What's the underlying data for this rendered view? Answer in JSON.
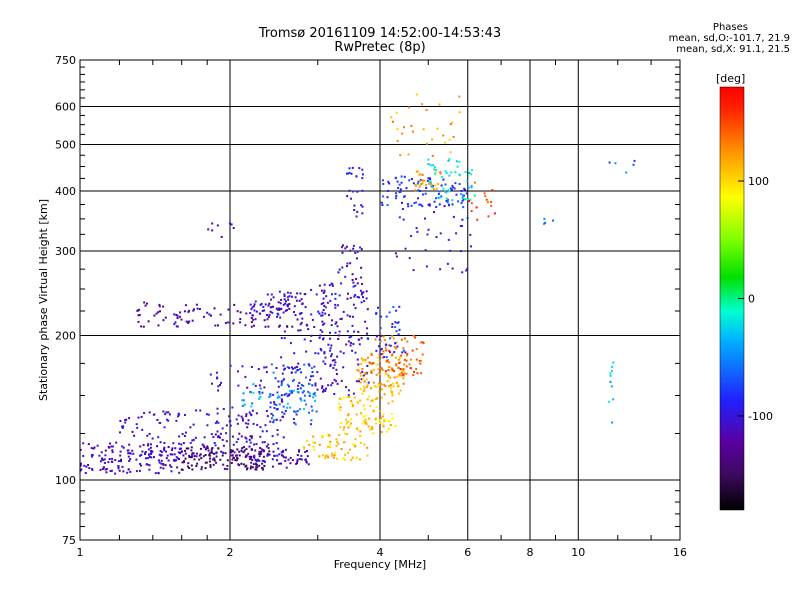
{
  "header": {
    "title_line1": "Tromsø 20161109 14:52:00-14:53:43",
    "title_line2": "RwPretec (8p)"
  },
  "phases": {
    "title": "Phases",
    "line_o": "mean, sd,O:-101.7, 21.9",
    "line_x": "mean, sd,X:  91.1, 21.5"
  },
  "colorbar": {
    "label": "[deg]",
    "ticks": [
      "100",
      "0",
      "-100"
    ],
    "range": [
      -180,
      180
    ]
  },
  "chart_data": {
    "type": "scatter",
    "xlabel": "Frequency [MHz]",
    "ylabel": "Stationary phase Virtual Height [km]",
    "xscale": "log",
    "yscale": "log",
    "xlim": [
      1,
      16
    ],
    "ylim": [
      75,
      750
    ],
    "xticks": [
      "1",
      "2",
      "4",
      "6",
      "8",
      "10",
      "16"
    ],
    "yticks": [
      "75",
      "100",
      "200",
      "300",
      "400",
      "500",
      "600",
      "750"
    ],
    "grid": true,
    "color_by": "phase_deg",
    "clusters": [
      {
        "f": [
          1.0,
          1.6
        ],
        "h": [
          103,
          120
        ],
        "phase": -110,
        "n": 160
      },
      {
        "f": [
          1.6,
          2.4
        ],
        "h": [
          105,
          118
        ],
        "phase": -140,
        "n": 150
      },
      {
        "f": [
          2.2,
          2.9
        ],
        "h": [
          106,
          116
        ],
        "phase": -110,
        "n": 60
      },
      {
        "f": [
          1.2,
          2.5
        ],
        "h": [
          112,
          140
        ],
        "phase": -105,
        "n": 130
      },
      {
        "f": [
          1.8,
          2.6
        ],
        "h": [
          118,
          175
        ],
        "phase": -100,
        "n": 80
      },
      {
        "f": [
          2.4,
          3.0
        ],
        "h": [
          130,
          175
        ],
        "phase": -70,
        "n": 70
      },
      {
        "f": [
          2.5,
          3.3
        ],
        "h": [
          150,
          250
        ],
        "phase": -105,
        "n": 110
      },
      {
        "f": [
          3.0,
          3.8
        ],
        "h": [
          150,
          260
        ],
        "phase": -105,
        "n": 120
      },
      {
        "f": [
          3.3,
          3.7
        ],
        "h": [
          260,
          310
        ],
        "phase": -110,
        "n": 25
      },
      {
        "f": [
          3.4,
          3.7
        ],
        "h": [
          350,
          450
        ],
        "phase": -100,
        "n": 25
      },
      {
        "f": [
          2.8,
          3.8
        ],
        "h": [
          110,
          125
        ],
        "phase": 110,
        "n": 60
      },
      {
        "f": [
          3.3,
          4.3
        ],
        "h": [
          125,
          150
        ],
        "phase": 105,
        "n": 90
      },
      {
        "f": [
          3.6,
          4.5
        ],
        "h": [
          150,
          180
        ],
        "phase": 115,
        "n": 100
      },
      {
        "f": [
          3.8,
          4.9
        ],
        "h": [
          165,
          200
        ],
        "phase": 140,
        "n": 80
      },
      {
        "f": [
          3.9,
          4.5
        ],
        "h": [
          180,
          230
        ],
        "phase": -80,
        "n": 40
      },
      {
        "f": [
          1.3,
          2.8
        ],
        "h": [
          208,
          235
        ],
        "phase": -120,
        "n": 110
      },
      {
        "f": [
          2.2,
          2.8
        ],
        "h": [
          220,
          245
        ],
        "phase": -100,
        "n": 40
      },
      {
        "f": [
          4.0,
          6.0
        ],
        "h": [
          370,
          430
        ],
        "phase": -80,
        "n": 90
      },
      {
        "f": [
          5.0,
          6.2
        ],
        "h": [
          380,
          470
        ],
        "phase": -20,
        "n": 50
      },
      {
        "f": [
          4.7,
          5.3
        ],
        "h": [
          400,
          440
        ],
        "phase": 120,
        "n": 25
      },
      {
        "f": [
          4.3,
          6.2
        ],
        "h": [
          270,
          380
        ],
        "phase": -100,
        "n": 40
      },
      {
        "f": [
          6.0,
          7.0
        ],
        "h": [
          340,
          420
        ],
        "phase": 150,
        "n": 15
      },
      {
        "f": [
          4.2,
          5.8
        ],
        "h": [
          470,
          650
        ],
        "phase": 120,
        "n": 30
      },
      {
        "f": [
          1.8,
          2.1
        ],
        "h": [
          320,
          345
        ],
        "phase": -110,
        "n": 8
      },
      {
        "f": [
          2.1,
          3.0
        ],
        "h": [
          140,
          160
        ],
        "phase": -40,
        "n": 40
      },
      {
        "f": [
          11.5,
          11.8
        ],
        "h": [
          120,
          180
        ],
        "phase": -30,
        "n": 10
      },
      {
        "f": [
          11.5,
          13.0
        ],
        "h": [
          430,
          470
        ],
        "phase": -60,
        "n": 5
      },
      {
        "f": [
          8.5,
          9.0
        ],
        "h": [
          340,
          360
        ],
        "phase": -50,
        "n": 4
      }
    ]
  }
}
